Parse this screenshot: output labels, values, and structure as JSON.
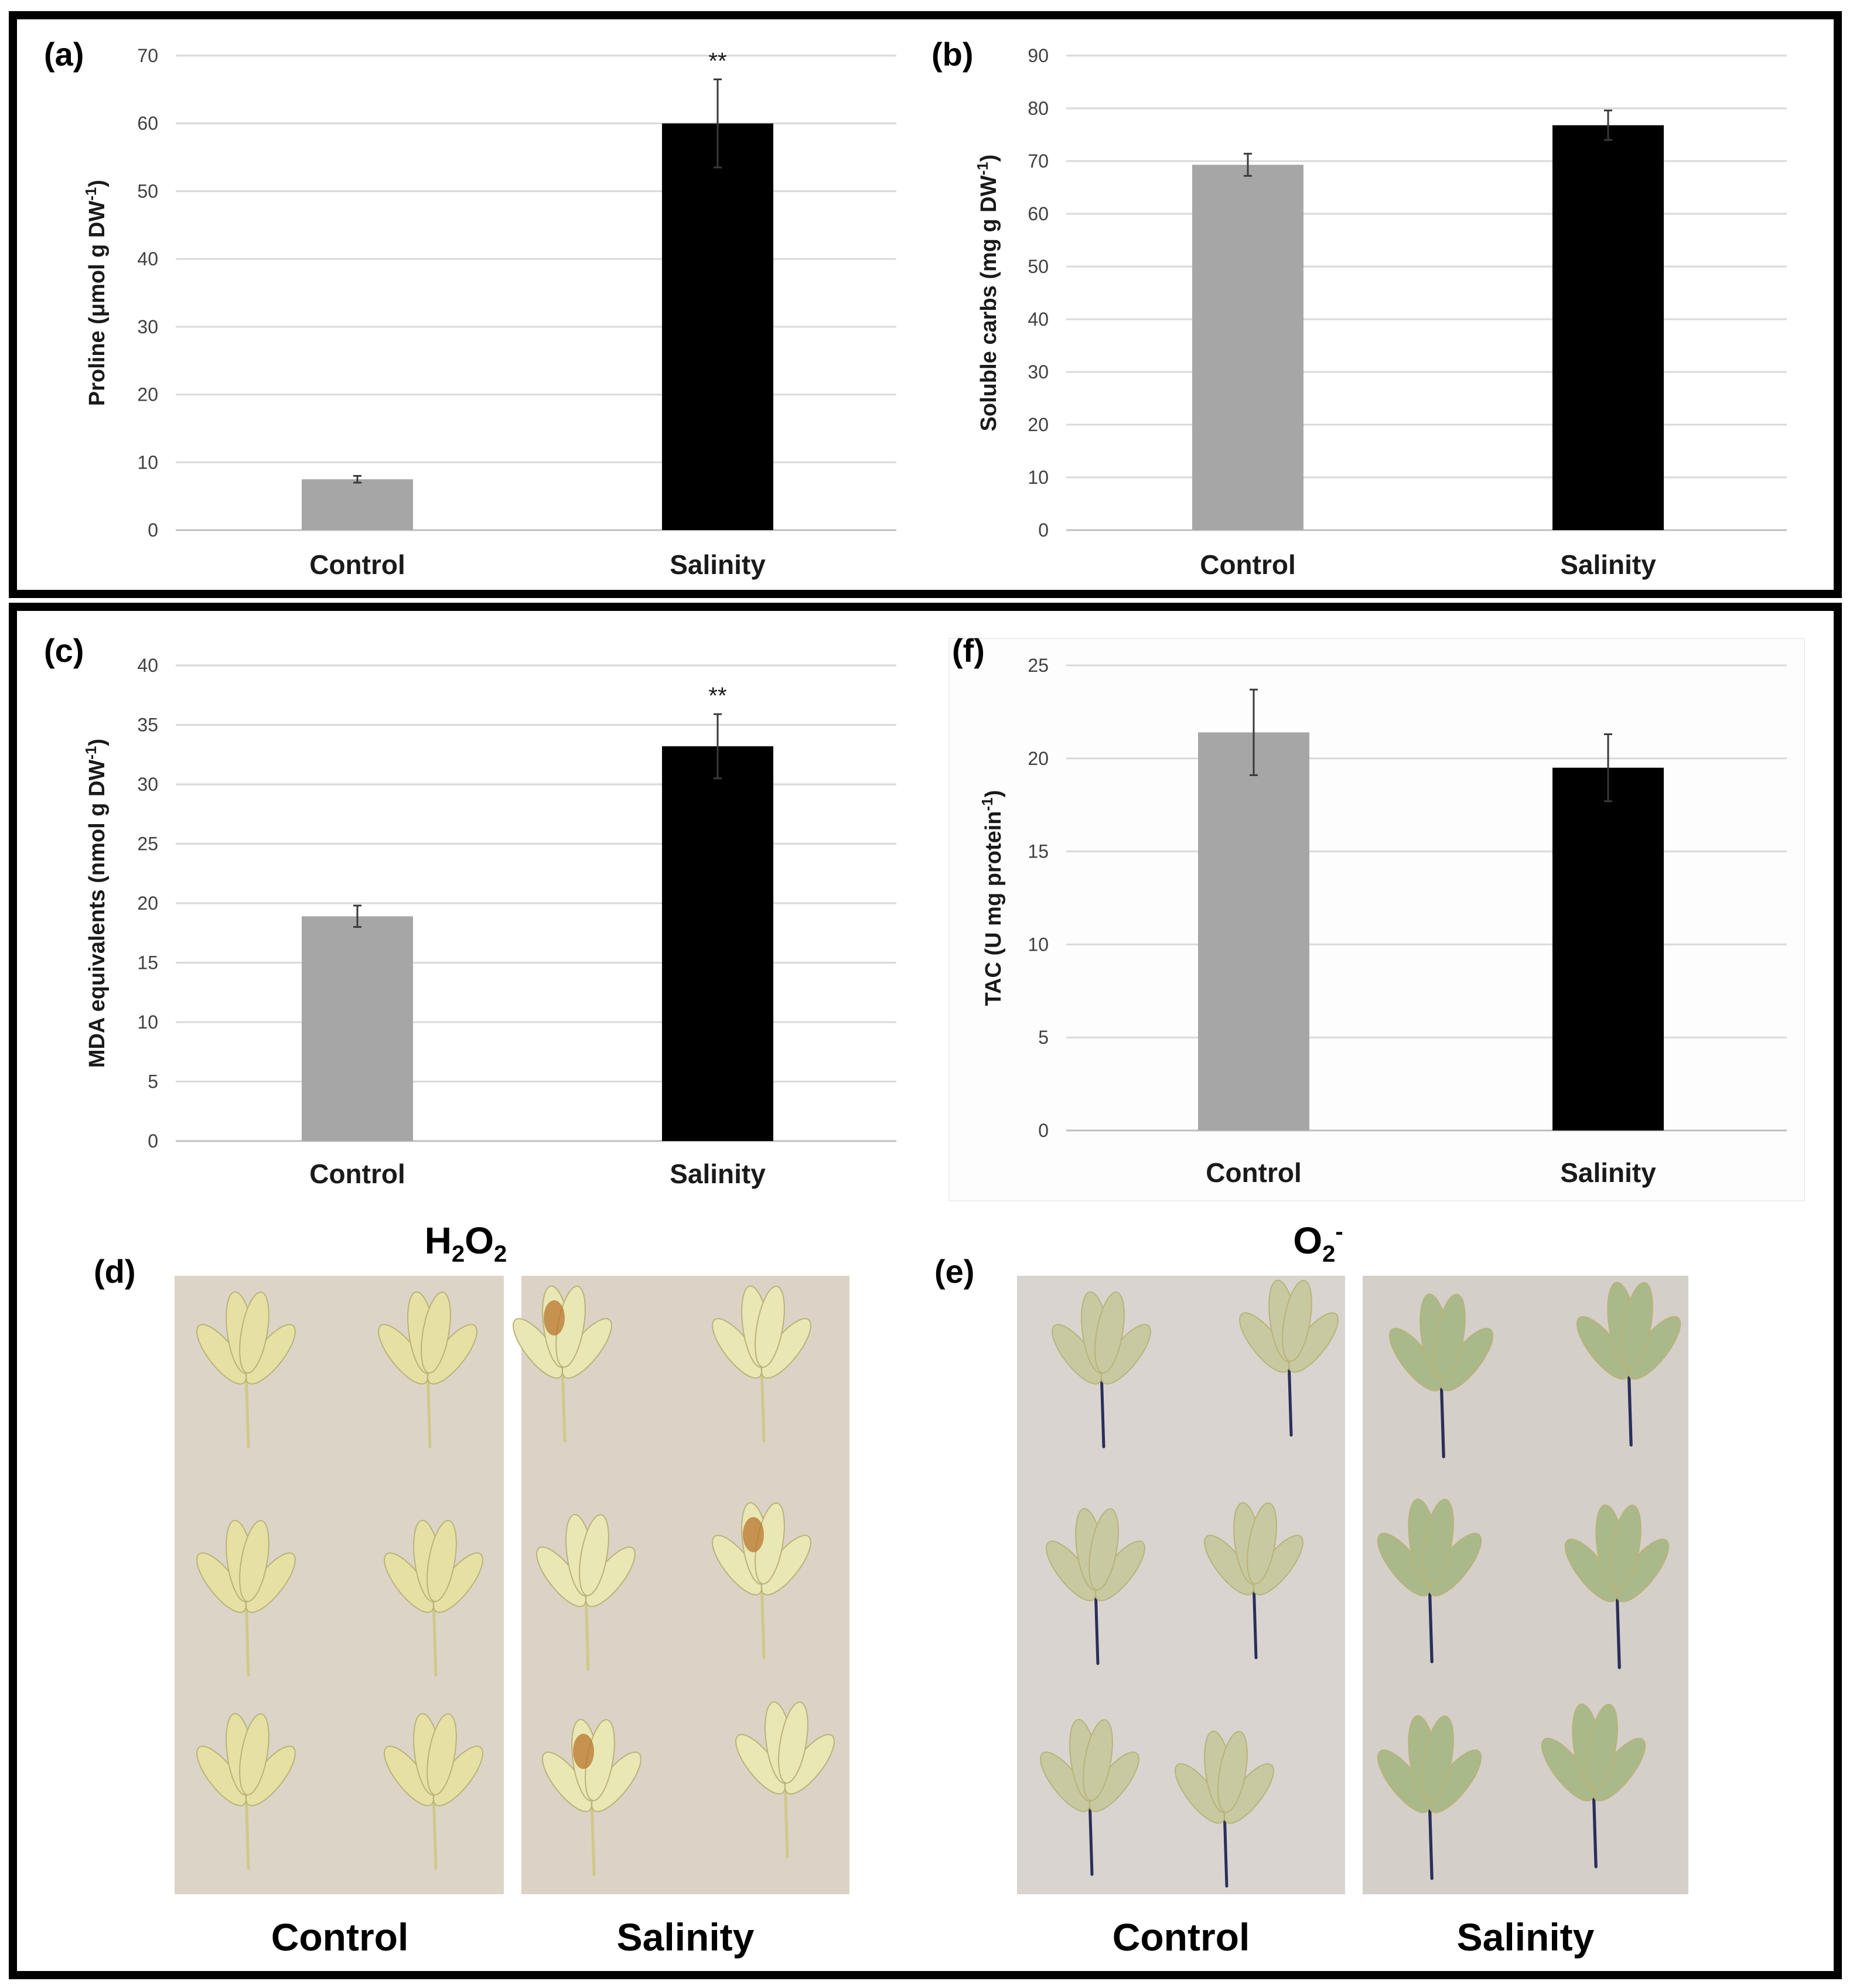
{
  "colors": {
    "control": "#a6a6a6",
    "salinity": "#000000",
    "photo_bg": "#ddd3c6"
  },
  "chart_data": [
    {
      "id": "a",
      "panel_label": "(a)",
      "type": "bar",
      "categories": [
        "Control",
        "Salinity"
      ],
      "values": [
        7.5,
        60
      ],
      "errors": [
        0.5,
        6.5
      ],
      "significance": [
        "",
        "**"
      ],
      "ylabel": "Proline (μmol g DW",
      "ylabel_sup": "-1",
      "ylabel_end": ")",
      "ylim": [
        0,
        70
      ],
      "ytick_step": 10,
      "grid": true
    },
    {
      "id": "b",
      "panel_label": "(b)",
      "type": "bar",
      "categories": [
        "Control",
        "Salinity"
      ],
      "values": [
        69.3,
        76.8
      ],
      "errors": [
        2.1,
        2.8
      ],
      "significance": [
        "",
        ""
      ],
      "ylabel": "Soluble carbs (mg g DW",
      "ylabel_sup": "-1",
      "ylabel_end": ")",
      "ylim": [
        0,
        90
      ],
      "ytick_step": 10,
      "grid": true
    },
    {
      "id": "c",
      "panel_label": "(c)",
      "type": "bar",
      "categories": [
        "Control",
        "Salinity"
      ],
      "values": [
        18.9,
        33.2
      ],
      "errors": [
        0.9,
        2.7
      ],
      "significance": [
        "",
        "**"
      ],
      "ylabel": "MDA equivalents (nmol g DW",
      "ylabel_sup": "-1",
      "ylabel_end": ")",
      "ylim": [
        0,
        40
      ],
      "ytick_step": 5,
      "grid": true
    },
    {
      "id": "f",
      "panel_label": "(f)",
      "type": "bar",
      "categories": [
        "Control",
        "Salinity"
      ],
      "values": [
        21.4,
        19.5
      ],
      "errors": [
        2.3,
        1.8
      ],
      "significance": [
        "",
        ""
      ],
      "ylabel": "TAC (U mg protein",
      "ylabel_sup": "-1",
      "ylabel_end": ")",
      "ylim": [
        0,
        25
      ],
      "ytick_step": 5,
      "grid": true
    }
  ],
  "photos": {
    "d": {
      "panel_label": "(d)",
      "stain": "H",
      "stain_sub1": "2",
      "stain_mid": "O",
      "stain_sub2": "2",
      "captions": [
        "Control",
        "Salinity"
      ]
    },
    "e": {
      "panel_label": "(e)",
      "stain": "O",
      "stain_sub": "2",
      "stain_sup": "-",
      "captions": [
        "Control",
        "Salinity"
      ]
    }
  }
}
